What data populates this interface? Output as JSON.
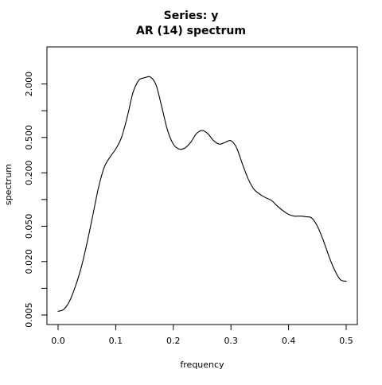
{
  "chart_data": {
    "type": "line",
    "title": [
      "Series: y",
      "AR (14) spectrum"
    ],
    "xlabel": "frequency",
    "ylabel": "spectrum",
    "xlim": [
      0,
      0.5
    ],
    "ylim": [
      0.005,
      4.0
    ],
    "y_scale": "log",
    "grid": false,
    "x_ticks": [
      0.0,
      0.1,
      0.2,
      0.3,
      0.4,
      0.5
    ],
    "x_tick_labels": [
      "0.0",
      "0.1",
      "0.2",
      "0.3",
      "0.4",
      "0.5"
    ],
    "y_ticks": [
      0.005,
      0.01,
      0.02,
      0.05,
      0.1,
      0.2,
      0.5,
      1.0,
      2.0
    ],
    "y_tick_labels": [
      "0.005",
      "",
      "0.020",
      "0.050",
      "",
      "0.200",
      "0.500",
      "",
      "2.000"
    ],
    "series": [
      {
        "x": [
          0.0,
          0.01,
          0.02,
          0.03,
          0.04,
          0.05,
          0.06,
          0.07,
          0.08,
          0.09,
          0.1,
          0.11,
          0.12,
          0.13,
          0.14,
          0.15,
          0.16,
          0.17,
          0.18,
          0.19,
          0.2,
          0.21,
          0.22,
          0.23,
          0.24,
          0.25,
          0.26,
          0.27,
          0.28,
          0.29,
          0.3,
          0.31,
          0.32,
          0.33,
          0.34,
          0.35,
          0.36,
          0.37,
          0.38,
          0.39,
          0.4,
          0.41,
          0.42,
          0.43,
          0.44,
          0.45,
          0.46,
          0.47,
          0.48,
          0.49,
          0.5
        ],
        "y": [
          0.0055,
          0.0058,
          0.0072,
          0.0105,
          0.017,
          0.032,
          0.065,
          0.135,
          0.23,
          0.3,
          0.37,
          0.5,
          0.85,
          1.6,
          2.2,
          2.35,
          2.4,
          1.95,
          1.1,
          0.6,
          0.42,
          0.37,
          0.38,
          0.44,
          0.55,
          0.6,
          0.55,
          0.46,
          0.42,
          0.44,
          0.46,
          0.38,
          0.25,
          0.17,
          0.13,
          0.115,
          0.105,
          0.098,
          0.085,
          0.075,
          0.068,
          0.065,
          0.065,
          0.064,
          0.062,
          0.05,
          0.035,
          0.023,
          0.016,
          0.0125,
          0.012
        ]
      }
    ]
  }
}
